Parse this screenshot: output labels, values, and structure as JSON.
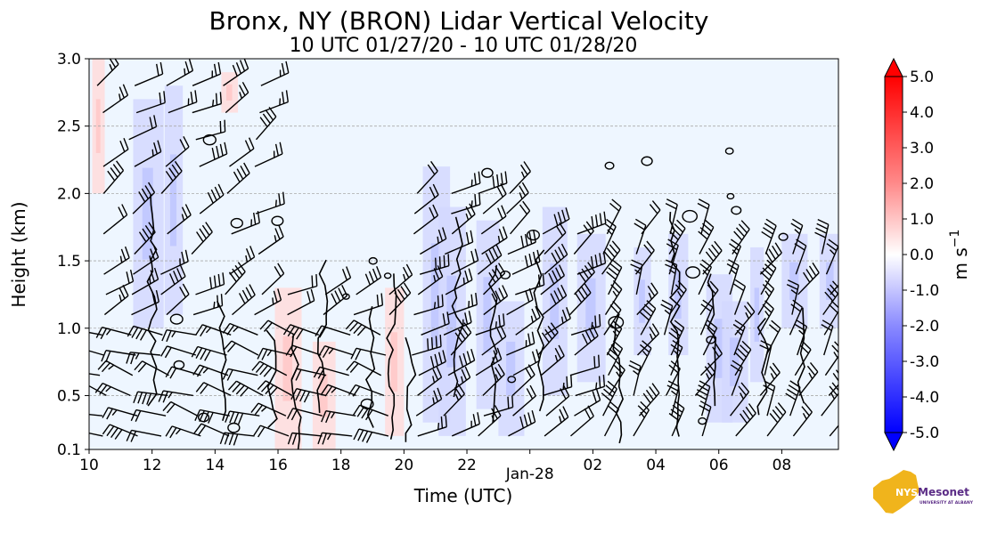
{
  "chart_data": {
    "type": "heatmap",
    "title": "Bronx, NY (BRON) Lidar Vertical Velocity",
    "subtitle": "10 UTC 01/27/20 - 10 UTC 01/28/20",
    "xlabel": "Time (UTC)",
    "ylabel": "Height (km)",
    "x_ticks": [
      "10",
      "12",
      "14",
      "16",
      "18",
      "20",
      "22",
      "Jan-28",
      "02",
      "04",
      "06",
      "08"
    ],
    "x_tick_hours": [
      0,
      2,
      4,
      6,
      8,
      10,
      12,
      14,
      16,
      18,
      20,
      22
    ],
    "xlim_hours": [
      0,
      23.8
    ],
    "y_ticks": [
      "0.1",
      "0.5",
      "1.0",
      "1.5",
      "2.0",
      "2.5",
      "3.0"
    ],
    "y_tick_values": [
      0.1,
      0.5,
      1.0,
      1.5,
      2.0,
      2.5,
      3.0
    ],
    "ylim": [
      0.1,
      3.0
    ],
    "grid": true,
    "colorbar": {
      "label": "m s",
      "label_superscript": "−1",
      "ticks": [
        "5.0",
        "4.0",
        "3.0",
        "2.0",
        "1.0",
        "0.0",
        "-1.0",
        "-2.0",
        "-3.0",
        "-4.0",
        "-5.0"
      ],
      "range": [
        -5,
        5
      ],
      "colors": {
        "max": "#ff0000",
        "mid": "#ffffff",
        "min": "#0000ff"
      }
    },
    "background_color": "#eef6ff",
    "overlays": [
      "vertical velocity contours",
      "wind barbs"
    ]
  },
  "logo": {
    "brand": "NYS",
    "name": "Mesonet",
    "tagline": "UNIVERSITY AT ALBANY"
  }
}
